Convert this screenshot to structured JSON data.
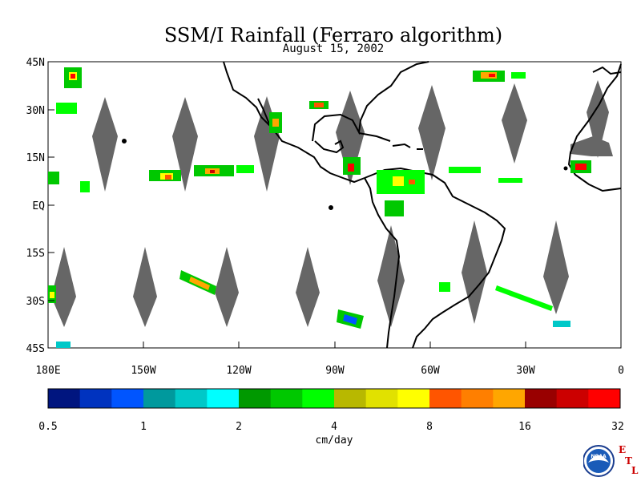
{
  "title": "SSM/I Rainfall (Ferraro algorithm)",
  "subtitle": "August 15, 2002",
  "map": {
    "lat_labels": [
      "45N",
      "30N",
      "15N",
      "EQ",
      "15S",
      "30S",
      "45S"
    ],
    "lon_labels": [
      "180E",
      "150W",
      "120W",
      "90W",
      "60W",
      "30W",
      "0"
    ],
    "no_data_color": "#666666",
    "coast_color": "#000000"
  },
  "legend": {
    "unit": "cm/day",
    "tick_labels": [
      "0.5",
      "1",
      "2",
      "4",
      "8",
      "16",
      "32"
    ],
    "colors": [
      "#00157f",
      "#0033bf",
      "#0055ff",
      "#00999d",
      "#00c8c8",
      "#00ffff",
      "#009900",
      "#00c800",
      "#00ff00",
      "#b8b800",
      "#e1e100",
      "#ffff00",
      "#ff5500",
      "#ff7f00",
      "#ffa600",
      "#990000",
      "#cc0000",
      "#ff0000"
    ]
  },
  "logo": {
    "agency": "NOAA",
    "lab_letters": [
      "E",
      "T",
      "L"
    ]
  }
}
